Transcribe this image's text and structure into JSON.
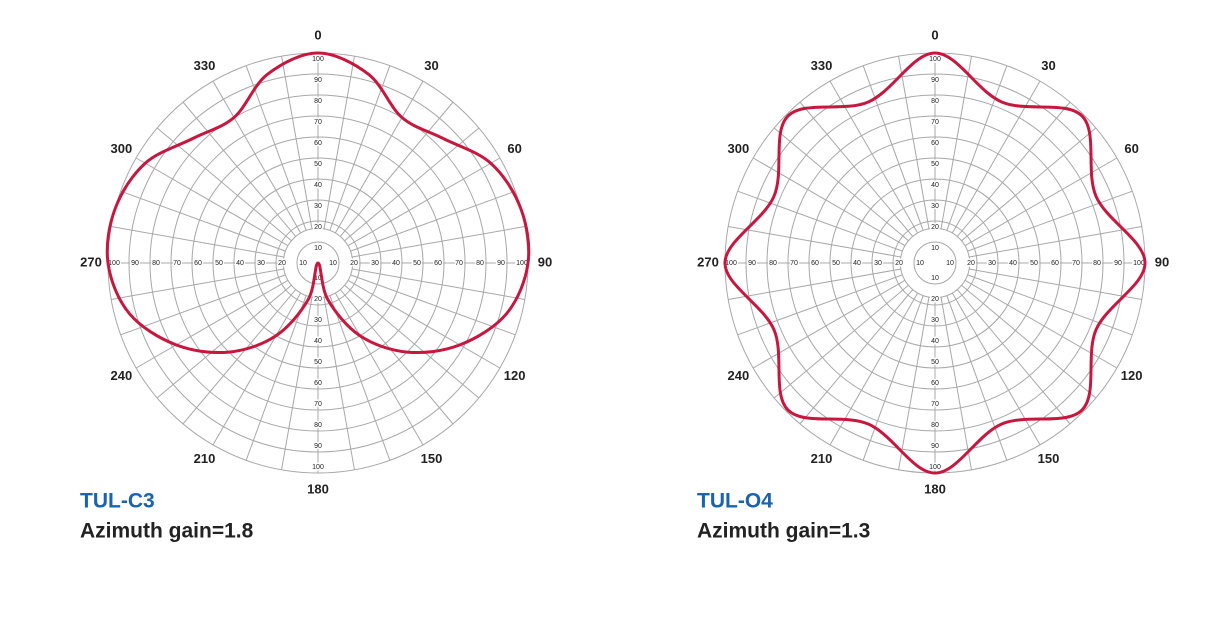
{
  "chart_data": [
    {
      "type": "polar",
      "title": "TUL-C3",
      "subtitle": "Azimuth gain=1.8",
      "theta": [
        0,
        15,
        30,
        45,
        60,
        75,
        90,
        105,
        120,
        135,
        150,
        165,
        180,
        195,
        210,
        225,
        240,
        255,
        270,
        285,
        300,
        315,
        330,
        345
      ],
      "values": [
        100,
        93,
        80,
        84,
        95,
        100,
        100,
        93,
        78,
        60,
        40,
        18,
        0,
        18,
        40,
        60,
        78,
        93,
        100,
        100,
        95,
        84,
        80,
        93
      ],
      "color": "#c8173f",
      "rlim": [
        0,
        100
      ],
      "rticks": [
        10,
        20,
        30,
        40,
        50,
        60,
        70,
        80,
        90,
        100
      ],
      "thetaticks": [
        0,
        30,
        60,
        90,
        120,
        150,
        180,
        210,
        240,
        270,
        300,
        330
      ],
      "theta_grid_step": 10
    },
    {
      "type": "polar",
      "title": "TUL-O4",
      "subtitle": "Azimuth gain=1.3",
      "theta": [
        0,
        22.5,
        45,
        67.5,
        90,
        112.5,
        135,
        157.5,
        180,
        202.5,
        225,
        247.5,
        270,
        292.5,
        315,
        337.5
      ],
      "values": [
        100,
        83,
        99,
        83,
        100,
        83,
        99,
        83,
        100,
        83,
        99,
        83,
        100,
        83,
        99,
        83
      ],
      "color": "#c8173f",
      "rlim": [
        0,
        100
      ],
      "rticks": [
        10,
        20,
        30,
        40,
        50,
        60,
        70,
        80,
        90,
        100
      ],
      "thetaticks": [
        0,
        30,
        60,
        90,
        120,
        150,
        180,
        210,
        240,
        270,
        300,
        330
      ],
      "theta_grid_step": 10
    }
  ]
}
